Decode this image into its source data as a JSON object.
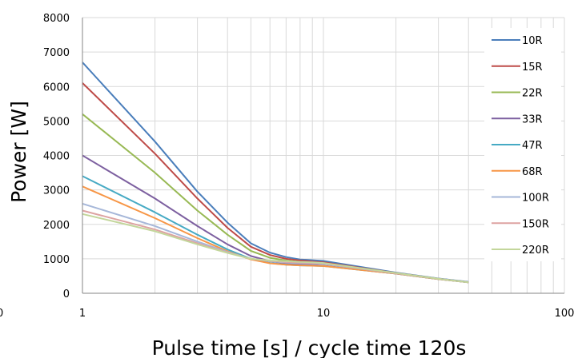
{
  "chart_data": {
    "type": "line",
    "title": "",
    "xlabel": "Pulse time [s] / cycle time 120s",
    "ylabel": "Power [W]",
    "x_scale": "log",
    "xlim": [
      1,
      100
    ],
    "ylim": [
      0,
      8000
    ],
    "x_ticks": [
      "1",
      "10",
      "100"
    ],
    "y_ticks": [
      "0",
      "1000",
      "2000",
      "3000",
      "4000",
      "5000",
      "6000",
      "7000",
      "8000"
    ],
    "stray_label": "0",
    "grid": true,
    "legend_position": "right",
    "x": [
      1,
      2,
      3,
      4,
      5,
      6,
      7,
      8,
      9,
      10,
      20,
      30,
      40
    ],
    "series": [
      {
        "name": "10R",
        "color": "#4a7ebb",
        "values": [
          6700,
          4400,
          2950,
          2050,
          1450,
          1180,
          1050,
          980,
          960,
          940,
          600,
          430,
          330
        ]
      },
      {
        "name": "15R",
        "color": "#be4b48",
        "values": [
          6100,
          4050,
          2750,
          1900,
          1350,
          1110,
          1000,
          950,
          920,
          900,
          590,
          420,
          320
        ]
      },
      {
        "name": "22R",
        "color": "#98b954",
        "values": [
          5200,
          3500,
          2400,
          1700,
          1230,
          1030,
          950,
          910,
          890,
          870,
          580,
          420,
          320
        ]
      },
      {
        "name": "33R",
        "color": "#7d60a0",
        "values": [
          4000,
          2750,
          1950,
          1420,
          1080,
          930,
          870,
          840,
          820,
          800,
          570,
          410,
          320
        ]
      },
      {
        "name": "47R",
        "color": "#46aac4",
        "values": [
          3400,
          2350,
          1700,
          1270,
          1000,
          880,
          830,
          810,
          800,
          790,
          570,
          410,
          320
        ]
      },
      {
        "name": "68R",
        "color": "#f79646",
        "values": [
          3100,
          2180,
          1600,
          1220,
          980,
          870,
          830,
          810,
          800,
          790,
          570,
          410,
          320
        ]
      },
      {
        "name": "100R",
        "color": "#a6b7d9",
        "values": [
          2600,
          1950,
          1500,
          1200,
          1000,
          930,
          890,
          870,
          860,
          850,
          580,
          420,
          320
        ]
      },
      {
        "name": "150R",
        "color": "#dda3a2",
        "values": [
          2400,
          1850,
          1450,
          1180,
          1000,
          940,
          910,
          890,
          880,
          870,
          580,
          420,
          320
        ]
      },
      {
        "name": "220R",
        "color": "#c3d69b",
        "values": [
          2300,
          1800,
          1420,
          1170,
          1000,
          950,
          930,
          910,
          900,
          880,
          590,
          420,
          320
        ]
      }
    ]
  }
}
